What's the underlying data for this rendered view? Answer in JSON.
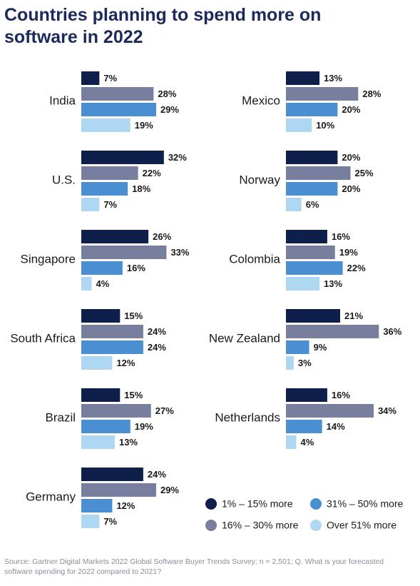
{
  "title": "Countries planning to spend more on software in 2022",
  "source": "Source: Gartner Digital Markets 2022 Global Software Buyer Trends Survey; n = 2,501; Q. What is your forecasted software spending for 2022 compared to 2021?",
  "chart_data": [
    {
      "type": "bar",
      "orientation": "horizontal",
      "categories": [
        "India",
        "U.S.",
        "Singapore",
        "South Africa",
        "Brazil",
        "Germany"
      ],
      "series": [
        {
          "color": "#0f1f4b",
          "values": [
            7,
            32,
            26,
            15,
            15,
            24
          ],
          "value_labels": [
            "7%",
            "32%",
            "26%",
            "15%",
            "15%",
            "24%"
          ]
        },
        {
          "color": "#787e9e",
          "values": [
            28,
            22,
            33,
            24,
            27,
            29
          ],
          "value_labels": [
            "28%",
            "22%",
            "33%",
            "24%",
            "27%",
            "29%"
          ]
        },
        {
          "color": "#4a8fd2",
          "values": [
            29,
            18,
            16,
            24,
            19,
            12
          ],
          "value_labels": [
            "29%",
            "18%",
            "16%",
            "24%",
            "19%",
            "12%"
          ]
        },
        {
          "color": "#aed8f2",
          "values": [
            19,
            7,
            4,
            12,
            13,
            7
          ],
          "value_labels": [
            "19%",
            "7%",
            "4%",
            "12%",
            "13%",
            "7%"
          ]
        }
      ]
    },
    {
      "type": "bar",
      "orientation": "horizontal",
      "categories": [
        "Mexico",
        "Norway",
        "Colombia",
        "New Zealand",
        "Netherlands"
      ],
      "series": [
        {
          "name": "1% – 15% more",
          "color": "#0f1f4b",
          "values": [
            13,
            20,
            16,
            21,
            16
          ],
          "value_labels": [
            "13%",
            "20%",
            "16%",
            "21%",
            "16%"
          ]
        },
        {
          "name": "16% – 30% more",
          "color": "#787e9e",
          "values": [
            28,
            25,
            19,
            36,
            34
          ],
          "value_labels": [
            "28%",
            "25%",
            "19%",
            "36%",
            "34%"
          ]
        },
        {
          "name": "31% – 50% more",
          "color": "#4a8fd2",
          "values": [
            20,
            20,
            22,
            9,
            14
          ],
          "value_labels": [
            "20%",
            "20%",
            "22%",
            "9%",
            "14%"
          ]
        },
        {
          "name": "Over 51% more",
          "color": "#aed8f2",
          "values": [
            10,
            6,
            13,
            3,
            4
          ],
          "value_labels": [
            "10%",
            "6%",
            "13%",
            "3%",
            "4%"
          ]
        }
      ]
    }
  ]
}
